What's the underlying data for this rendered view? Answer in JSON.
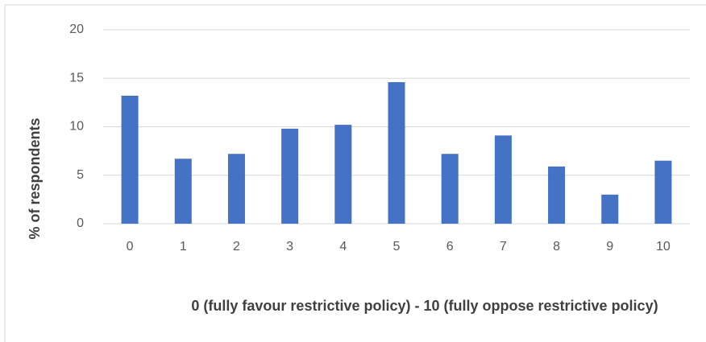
{
  "chart_data": {
    "type": "bar",
    "x_label": "0 (fully favour restrictive policy) - 10 (fully oppose restrictive policy)",
    "y_label": "% of respondents",
    "categories": [
      "0",
      "1",
      "2",
      "3",
      "4",
      "5",
      "6",
      "7",
      "8",
      "9",
      "10"
    ],
    "values": [
      13.2,
      6.7,
      7.2,
      9.8,
      10.2,
      14.6,
      7.2,
      9.1,
      5.9,
      3.0,
      6.5
    ],
    "color": "#4472c4",
    "ylim": [
      0,
      20
    ],
    "yticks": [
      0,
      5,
      10,
      15,
      20
    ],
    "grid": true
  }
}
